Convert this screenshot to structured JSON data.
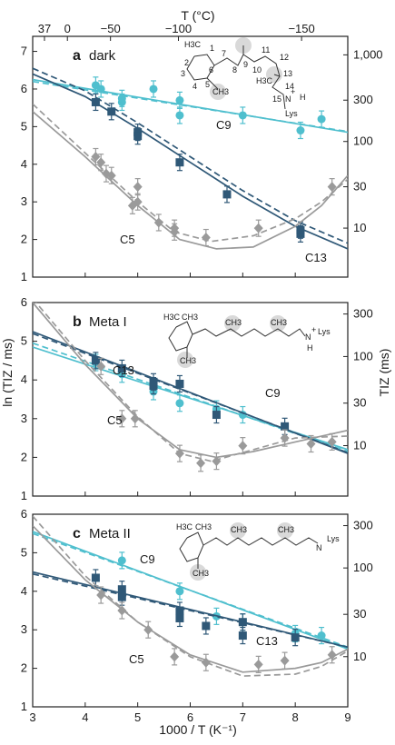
{
  "figure": {
    "top_axis_label": "T (°C)",
    "top_axis_ticks": [
      37,
      0,
      -50,
      -100,
      -150
    ],
    "x_axis_label": "1000 / T (K⁻¹)",
    "left_axis_label": "ln (TIZ / ms)",
    "right_axis_label": "TIZ (ms)"
  },
  "colors": {
    "C9": "#4fbfce",
    "C13": "#2f5877",
    "C5": "#9a9a9a",
    "axis": "#222222"
  },
  "chart_data": [
    {
      "type": "scatter",
      "panel": "a",
      "title": "dark",
      "xlim": [
        3,
        9
      ],
      "ylim": [
        1,
        7.4
      ],
      "x_ticks": [
        3,
        4,
        5,
        6,
        7,
        8,
        9
      ],
      "y_ticks": [
        1,
        2,
        3,
        4,
        5,
        6,
        7
      ],
      "right_ticks": [
        "1,000",
        "300",
        "100",
        "30",
        "10"
      ],
      "right_tick_values": [
        1000,
        300,
        100,
        30,
        10
      ],
      "series": [
        {
          "name": "C9",
          "points": [
            [
              4.2,
              6.1
            ],
            [
              4.3,
              6.0
            ],
            [
              4.7,
              5.65
            ],
            [
              4.7,
              5.75
            ],
            [
              5.3,
              6.0
            ],
            [
              5.8,
              5.3
            ],
            [
              5.8,
              5.7
            ],
            [
              7.0,
              5.3
            ],
            [
              8.1,
              4.9
            ],
            [
              8.5,
              5.2
            ]
          ],
          "fit_solid": [
            [
              3.0,
              6.25
            ],
            [
              9.0,
              4.85
            ]
          ],
          "fit_dashed": [
            [
              3.0,
              6.2
            ],
            [
              9.0,
              4.87
            ]
          ]
        },
        {
          "name": "C13",
          "points": [
            [
              4.2,
              5.65
            ],
            [
              4.5,
              5.4
            ],
            [
              5.0,
              4.85
            ],
            [
              5.0,
              4.75
            ],
            [
              5.8,
              4.05
            ],
            [
              6.7,
              3.2
            ],
            [
              8.1,
              2.15
            ],
            [
              8.1,
              2.25
            ]
          ],
          "fit_solid": [
            [
              3.0,
              6.4
            ],
            [
              4.0,
              5.8
            ],
            [
              5.0,
              4.95
            ],
            [
              6.0,
              4.05
            ],
            [
              7.0,
              3.15
            ],
            [
              8.0,
              2.35
            ],
            [
              9.0,
              1.75
            ]
          ],
          "fit_dashed": [
            [
              3.0,
              6.55
            ],
            [
              4.0,
              5.95
            ],
            [
              5.0,
              5.1
            ],
            [
              6.0,
              4.2
            ],
            [
              7.0,
              3.3
            ],
            [
              8.0,
              2.5
            ],
            [
              9.0,
              1.9
            ]
          ]
        },
        {
          "name": "C5",
          "points": [
            [
              4.2,
              4.2
            ],
            [
              4.3,
              4.05
            ],
            [
              4.4,
              3.75
            ],
            [
              4.5,
              3.7
            ],
            [
              4.9,
              2.9
            ],
            [
              5.0,
              3.0
            ],
            [
              5.0,
              3.4
            ],
            [
              5.4,
              2.45
            ],
            [
              5.7,
              2.2
            ],
            [
              5.7,
              2.3
            ],
            [
              6.3,
              2.05
            ],
            [
              7.3,
              2.3
            ],
            [
              8.7,
              3.4
            ]
          ],
          "fit_solid": [
            [
              3.0,
              5.4
            ],
            [
              4.0,
              4.2
            ],
            [
              5.0,
              2.9
            ],
            [
              5.8,
              2.0
            ],
            [
              6.5,
              1.75
            ],
            [
              7.2,
              1.8
            ],
            [
              8.0,
              2.35
            ],
            [
              8.5,
              2.9
            ],
            [
              9.0,
              3.7
            ]
          ],
          "fit_dashed": [
            [
              3.0,
              5.6
            ],
            [
              4.0,
              4.3
            ],
            [
              5.0,
              3.0
            ],
            [
              5.7,
              2.2
            ],
            [
              6.4,
              1.95
            ],
            [
              7.2,
              2.1
            ],
            [
              8.0,
              2.55
            ],
            [
              8.5,
              3.0
            ],
            [
              9.0,
              3.6
            ]
          ]
        }
      ]
    },
    {
      "type": "scatter",
      "panel": "b",
      "title": "Meta I",
      "xlim": [
        3,
        9
      ],
      "ylim": [
        1,
        6
      ],
      "x_ticks": [
        3,
        4,
        5,
        6,
        7,
        8,
        9
      ],
      "y_ticks": [
        1,
        2,
        3,
        4,
        5,
        6
      ],
      "right_ticks": [
        "300",
        "100",
        "30",
        "10"
      ],
      "right_tick_values": [
        300,
        100,
        30,
        10
      ],
      "series": [
        {
          "name": "C9",
          "points": [
            [
              4.2,
              4.45
            ],
            [
              4.7,
              4.15
            ],
            [
              5.3,
              3.7
            ],
            [
              5.8,
              3.4
            ],
            [
              6.5,
              3.25
            ],
            [
              7.0,
              3.1
            ]
          ],
          "fit_solid": [
            [
              3.0,
              4.85
            ],
            [
              9.0,
              2.2
            ]
          ],
          "fit_dashed": [
            [
              3.0,
              4.95
            ],
            [
              9.0,
              2.15
            ]
          ]
        },
        {
          "name": "C13",
          "points": [
            [
              4.2,
              4.5
            ],
            [
              4.7,
              4.3
            ],
            [
              5.3,
              3.95
            ],
            [
              5.3,
              3.85
            ],
            [
              5.8,
              3.9
            ],
            [
              6.5,
              3.1
            ],
            [
              7.8,
              2.8
            ]
          ],
          "fit_solid": [
            [
              3.0,
              5.25
            ],
            [
              9.0,
              2.1
            ]
          ],
          "fit_dashed": [
            [
              3.0,
              5.2
            ],
            [
              9.0,
              2.12
            ]
          ]
        },
        {
          "name": "C5",
          "points": [
            [
              4.3,
              4.35
            ],
            [
              4.7,
              3.0
            ],
            [
              4.95,
              3.0
            ],
            [
              5.8,
              2.1
            ],
            [
              6.2,
              1.85
            ],
            [
              6.5,
              1.9
            ],
            [
              7.0,
              2.3
            ],
            [
              7.8,
              2.5
            ],
            [
              8.3,
              2.35
            ],
            [
              8.7,
              2.4
            ]
          ],
          "fit_solid": [
            [
              3.0,
              6.0
            ],
            [
              4.0,
              4.4
            ],
            [
              5.0,
              3.0
            ],
            [
              5.8,
              2.2
            ],
            [
              6.5,
              2.0
            ],
            [
              7.2,
              2.15
            ],
            [
              8.0,
              2.4
            ],
            [
              9.0,
              2.7
            ]
          ],
          "fit_dashed": [
            [
              3.0,
              6.1
            ],
            [
              4.0,
              4.5
            ],
            [
              5.0,
              3.05
            ],
            [
              5.8,
              2.1
            ],
            [
              6.4,
              1.9
            ],
            [
              7.2,
              2.2
            ],
            [
              8.0,
              2.5
            ],
            [
              9.0,
              2.55
            ]
          ]
        }
      ]
    },
    {
      "type": "scatter",
      "panel": "c",
      "title": "Meta II",
      "xlim": [
        3,
        9
      ],
      "ylim": [
        1,
        6
      ],
      "x_ticks": [
        3,
        4,
        5,
        6,
        7,
        8,
        9
      ],
      "y_ticks": [
        1,
        2,
        3,
        4,
        5,
        6
      ],
      "right_ticks": [
        "300",
        "100",
        "30",
        "10"
      ],
      "right_tick_values": [
        300,
        100,
        30,
        10
      ],
      "series": [
        {
          "name": "C9",
          "points": [
            [
              4.7,
              4.8
            ],
            [
              5.8,
              4.0
            ],
            [
              6.5,
              3.35
            ],
            [
              7.0,
              3.2
            ],
            [
              8.0,
              2.9
            ],
            [
              8.5,
              2.85
            ]
          ],
          "fit_solid": [
            [
              3.0,
              5.55
            ],
            [
              9.0,
              2.5
            ]
          ],
          "fit_dashed": [
            [
              3.0,
              5.5
            ],
            [
              9.0,
              2.55
            ]
          ]
        },
        {
          "name": "C13",
          "points": [
            [
              4.2,
              4.35
            ],
            [
              4.7,
              4.05
            ],
            [
              4.7,
              3.85
            ],
            [
              5.8,
              3.5
            ],
            [
              5.8,
              3.3
            ],
            [
              6.3,
              3.1
            ],
            [
              7.0,
              2.85
            ],
            [
              7.0,
              3.2
            ],
            [
              8.0,
              2.8
            ]
          ],
          "fit_solid": [
            [
              3.0,
              4.5
            ],
            [
              9.0,
              2.55
            ]
          ],
          "fit_dashed": [
            [
              3.0,
              4.45
            ],
            [
              9.0,
              2.55
            ]
          ]
        },
        {
          "name": "C5",
          "points": [
            [
              4.3,
              3.9
            ],
            [
              4.7,
              3.5
            ],
            [
              5.2,
              3.0
            ],
            [
              5.7,
              2.3
            ],
            [
              6.3,
              2.15
            ],
            [
              7.3,
              2.1
            ],
            [
              7.8,
              2.2
            ],
            [
              8.7,
              2.35
            ]
          ],
          "fit_solid": [
            [
              3.0,
              5.7
            ],
            [
              4.0,
              4.3
            ],
            [
              5.0,
              3.2
            ],
            [
              6.0,
              2.35
            ],
            [
              7.0,
              1.9
            ],
            [
              8.0,
              2.0
            ],
            [
              8.5,
              2.15
            ],
            [
              9.0,
              2.5
            ]
          ],
          "fit_dashed": [
            [
              3.0,
              5.95
            ],
            [
              4.0,
              4.4
            ],
            [
              5.0,
              3.2
            ],
            [
              6.0,
              2.3
            ],
            [
              7.0,
              1.8
            ],
            [
              8.0,
              1.85
            ],
            [
              8.5,
              2.05
            ],
            [
              9.0,
              2.45
            ]
          ]
        }
      ]
    }
  ],
  "molecules": {
    "a_atoms": [
      "H3C",
      "1",
      "2",
      "3",
      "4",
      "5",
      "6",
      "7",
      "8",
      "9",
      "10",
      "11",
      "12",
      "13",
      "14",
      "15",
      "CH3",
      "H3C",
      "N",
      "H",
      "Lys",
      "+"
    ],
    "b_atoms": [
      "H3C",
      "CH3",
      "CH3",
      "CH3",
      "CH3",
      "N",
      "Lys",
      "H",
      "+"
    ],
    "c_atoms": [
      "H3C",
      "CH3",
      "CH3",
      "CH3",
      "CH3",
      "N",
      "Lys"
    ]
  }
}
